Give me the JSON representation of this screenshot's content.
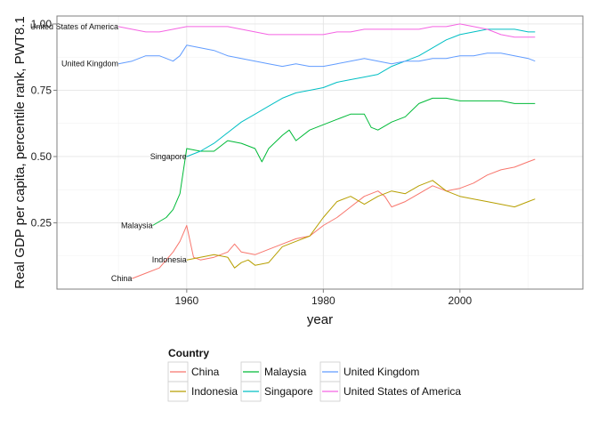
{
  "chart_data": {
    "type": "line",
    "xlabel": "year",
    "ylabel": "Real GDP per capita, percentile rank, PWT8.1",
    "xlim": [
      1941,
      2018
    ],
    "ylim": [
      0.0,
      1.03
    ],
    "x_ticks": [
      1960,
      1980,
      2000
    ],
    "y_ticks": [
      0.25,
      0.5,
      0.75,
      1.0
    ],
    "y_tick_labels": [
      "0.25",
      "0.50",
      "0.75",
      "1.00"
    ],
    "grid": true,
    "legend": {
      "title": "Country",
      "position": "bottom"
    },
    "series": [
      {
        "name": "China",
        "color": "#F8766D",
        "label": "China",
        "x": [
          1952,
          1954,
          1956,
          1958,
          1959,
          1960,
          1961,
          1962,
          1964,
          1966,
          1967,
          1968,
          1970,
          1972,
          1974,
          1976,
          1978,
          1980,
          1982,
          1984,
          1986,
          1988,
          1989,
          1990,
          1992,
          1994,
          1996,
          1998,
          2000,
          2002,
          2004,
          2006,
          2008,
          2010,
          2011
        ],
        "y": [
          0.04,
          0.06,
          0.08,
          0.14,
          0.18,
          0.24,
          0.12,
          0.11,
          0.12,
          0.14,
          0.17,
          0.14,
          0.13,
          0.15,
          0.17,
          0.19,
          0.2,
          0.24,
          0.27,
          0.31,
          0.35,
          0.37,
          0.35,
          0.31,
          0.33,
          0.36,
          0.39,
          0.37,
          0.38,
          0.4,
          0.43,
          0.45,
          0.46,
          0.48,
          0.49
        ]
      },
      {
        "name": "Indonesia",
        "color": "#B79F00",
        "label": "Indonesia",
        "x": [
          1960,
          1962,
          1964,
          1966,
          1967,
          1968,
          1969,
          1970,
          1972,
          1974,
          1976,
          1978,
          1980,
          1982,
          1984,
          1986,
          1988,
          1990,
          1992,
          1994,
          1996,
          1998,
          2000,
          2002,
          2004,
          2006,
          2008,
          2010,
          2011
        ],
        "y": [
          0.11,
          0.12,
          0.13,
          0.12,
          0.08,
          0.1,
          0.11,
          0.09,
          0.1,
          0.16,
          0.18,
          0.2,
          0.27,
          0.33,
          0.35,
          0.32,
          0.35,
          0.37,
          0.36,
          0.39,
          0.41,
          0.37,
          0.35,
          0.34,
          0.33,
          0.32,
          0.31,
          0.33,
          0.34
        ]
      },
      {
        "name": "Malaysia",
        "color": "#00BA38",
        "label": "Malaysia",
        "x": [
          1955,
          1957,
          1958,
          1959,
          1960,
          1962,
          1964,
          1966,
          1968,
          1970,
          1971,
          1972,
          1974,
          1975,
          1976,
          1978,
          1980,
          1982,
          1984,
          1986,
          1987,
          1988,
          1990,
          1992,
          1994,
          1996,
          1998,
          2000,
          2002,
          2004,
          2006,
          2008,
          2010,
          2011
        ],
        "y": [
          0.24,
          0.27,
          0.3,
          0.36,
          0.53,
          0.52,
          0.52,
          0.56,
          0.55,
          0.53,
          0.48,
          0.53,
          0.58,
          0.6,
          0.56,
          0.6,
          0.62,
          0.64,
          0.66,
          0.66,
          0.61,
          0.6,
          0.63,
          0.65,
          0.7,
          0.72,
          0.72,
          0.71,
          0.71,
          0.71,
          0.71,
          0.7,
          0.7,
          0.7
        ]
      },
      {
        "name": "Singapore",
        "color": "#00BFC4",
        "label": "Singapore",
        "x": [
          1960,
          1962,
          1964,
          1966,
          1968,
          1970,
          1972,
          1974,
          1976,
          1978,
          1980,
          1982,
          1984,
          1986,
          1988,
          1990,
          1992,
          1994,
          1996,
          1998,
          2000,
          2002,
          2004,
          2006,
          2008,
          2010,
          2011
        ],
        "y": [
          0.5,
          0.52,
          0.55,
          0.59,
          0.63,
          0.66,
          0.69,
          0.72,
          0.74,
          0.75,
          0.76,
          0.78,
          0.79,
          0.8,
          0.81,
          0.84,
          0.86,
          0.88,
          0.91,
          0.94,
          0.96,
          0.97,
          0.98,
          0.98,
          0.98,
          0.97,
          0.97
        ]
      },
      {
        "name": "United Kingdom",
        "color": "#619CFF",
        "label": "United Kingdom",
        "x": [
          1950,
          1952,
          1954,
          1956,
          1958,
          1959,
          1960,
          1962,
          1964,
          1966,
          1968,
          1970,
          1972,
          1974,
          1976,
          1978,
          1980,
          1982,
          1984,
          1986,
          1988,
          1990,
          1992,
          1994,
          1996,
          1998,
          2000,
          2002,
          2004,
          2006,
          2008,
          2010,
          2011
        ],
        "y": [
          0.85,
          0.86,
          0.88,
          0.88,
          0.86,
          0.88,
          0.92,
          0.91,
          0.9,
          0.88,
          0.87,
          0.86,
          0.85,
          0.84,
          0.85,
          0.84,
          0.84,
          0.85,
          0.86,
          0.87,
          0.86,
          0.85,
          0.86,
          0.86,
          0.87,
          0.87,
          0.88,
          0.88,
          0.89,
          0.89,
          0.88,
          0.87,
          0.86
        ]
      },
      {
        "name": "United States of America",
        "color": "#F564E3",
        "label": "United States of America",
        "x": [
          1950,
          1952,
          1954,
          1956,
          1958,
          1960,
          1962,
          1964,
          1966,
          1968,
          1970,
          1972,
          1974,
          1976,
          1978,
          1980,
          1982,
          1984,
          1986,
          1988,
          1990,
          1992,
          1994,
          1996,
          1998,
          2000,
          2002,
          2004,
          2006,
          2008,
          2010,
          2011
        ],
        "y": [
          0.99,
          0.98,
          0.97,
          0.97,
          0.98,
          0.99,
          0.99,
          0.99,
          0.99,
          0.98,
          0.97,
          0.96,
          0.96,
          0.96,
          0.96,
          0.96,
          0.97,
          0.97,
          0.98,
          0.98,
          0.98,
          0.98,
          0.98,
          0.99,
          0.99,
          1.0,
          0.99,
          0.98,
          0.96,
          0.95,
          0.95,
          0.95
        ]
      }
    ]
  }
}
